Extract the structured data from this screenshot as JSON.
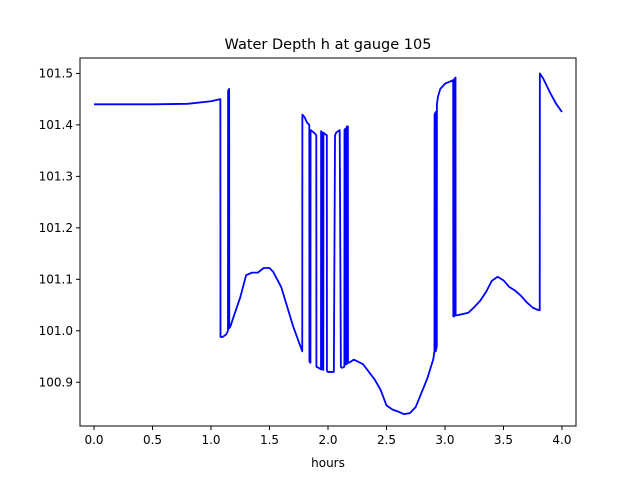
{
  "chart_data": {
    "type": "line",
    "title": "Water Depth h at gauge 105",
    "xlabel": "hours",
    "ylabel": "",
    "xlim": [
      -0.12,
      4.12
    ],
    "ylim": [
      100.815,
      101.53
    ],
    "xticks": [
      0.0,
      0.5,
      1.0,
      1.5,
      2.0,
      2.5,
      3.0,
      3.5,
      4.0
    ],
    "xtick_labels": [
      "0.0",
      "0.5",
      "1.0",
      "1.5",
      "2.0",
      "2.5",
      "3.0",
      "3.5",
      "4.0"
    ],
    "yticks": [
      100.9,
      101.0,
      101.1,
      101.2,
      101.3,
      101.4,
      101.5
    ],
    "ytick_labels": [
      "100.9",
      "101.0",
      "101.1",
      "101.2",
      "101.3",
      "101.4",
      "101.5"
    ],
    "grid": false,
    "series": [
      {
        "color": "#0000ff",
        "x": [
          0.0,
          0.5,
          0.8,
          1.0,
          1.08,
          1.081,
          1.1,
          1.13,
          1.145,
          1.146,
          1.155,
          1.156,
          1.165,
          1.2,
          1.25,
          1.3,
          1.35,
          1.4,
          1.45,
          1.5,
          1.53,
          1.6,
          1.7,
          1.78,
          1.781,
          1.8,
          1.82,
          1.84,
          1.841,
          1.85,
          1.851,
          1.88,
          1.9,
          1.901,
          1.92,
          1.94,
          1.941,
          1.95,
          1.951,
          1.96,
          1.961,
          1.975,
          1.99,
          1.991,
          2.0,
          2.02,
          2.05,
          2.06,
          2.07,
          2.1,
          2.11,
          2.12,
          2.14,
          2.141,
          2.15,
          2.151,
          2.16,
          2.161,
          2.17,
          2.171,
          2.18,
          2.22,
          2.3,
          2.4,
          2.45,
          2.5,
          2.55,
          2.6,
          2.65,
          2.7,
          2.75,
          2.8,
          2.85,
          2.9,
          2.91,
          2.911,
          2.92,
          2.921,
          2.93,
          2.931,
          2.94,
          2.96,
          3.0,
          3.05,
          3.07,
          3.071,
          3.08,
          3.081,
          3.09,
          3.091,
          3.1,
          3.2,
          3.25,
          3.3,
          3.35,
          3.4,
          3.45,
          3.5,
          3.55,
          3.6,
          3.65,
          3.7,
          3.75,
          3.8,
          3.81,
          3.811,
          3.84,
          3.9,
          3.95,
          4.0
        ],
        "y": [
          101.44,
          101.44,
          101.441,
          101.446,
          101.45,
          100.988,
          100.988,
          100.993,
          101.0,
          101.466,
          101.47,
          101.005,
          101.008,
          101.032,
          101.065,
          101.108,
          101.113,
          101.113,
          101.122,
          101.122,
          101.115,
          101.085,
          101.01,
          100.96,
          101.42,
          101.415,
          101.405,
          101.4,
          100.94,
          100.938,
          101.39,
          101.385,
          101.38,
          100.93,
          100.928,
          100.925,
          101.388,
          101.385,
          100.925,
          100.924,
          101.385,
          101.382,
          101.38,
          100.922,
          100.92,
          100.92,
          100.92,
          101.38,
          101.385,
          101.39,
          100.93,
          100.928,
          100.93,
          101.39,
          101.393,
          100.935,
          100.935,
          101.397,
          101.397,
          100.938,
          100.938,
          100.944,
          100.935,
          100.905,
          100.885,
          100.855,
          100.847,
          100.843,
          100.838,
          100.84,
          100.852,
          100.88,
          100.908,
          100.945,
          100.96,
          101.42,
          101.425,
          100.96,
          100.97,
          101.44,
          101.455,
          101.47,
          101.48,
          101.485,
          101.487,
          101.028,
          101.028,
          101.49,
          101.492,
          101.03,
          101.03,
          101.035,
          101.046,
          101.058,
          101.075,
          101.097,
          101.105,
          101.098,
          101.085,
          101.078,
          101.068,
          101.055,
          101.045,
          101.04,
          101.04,
          101.5,
          101.49,
          101.462,
          101.441,
          101.425
        ]
      }
    ]
  }
}
